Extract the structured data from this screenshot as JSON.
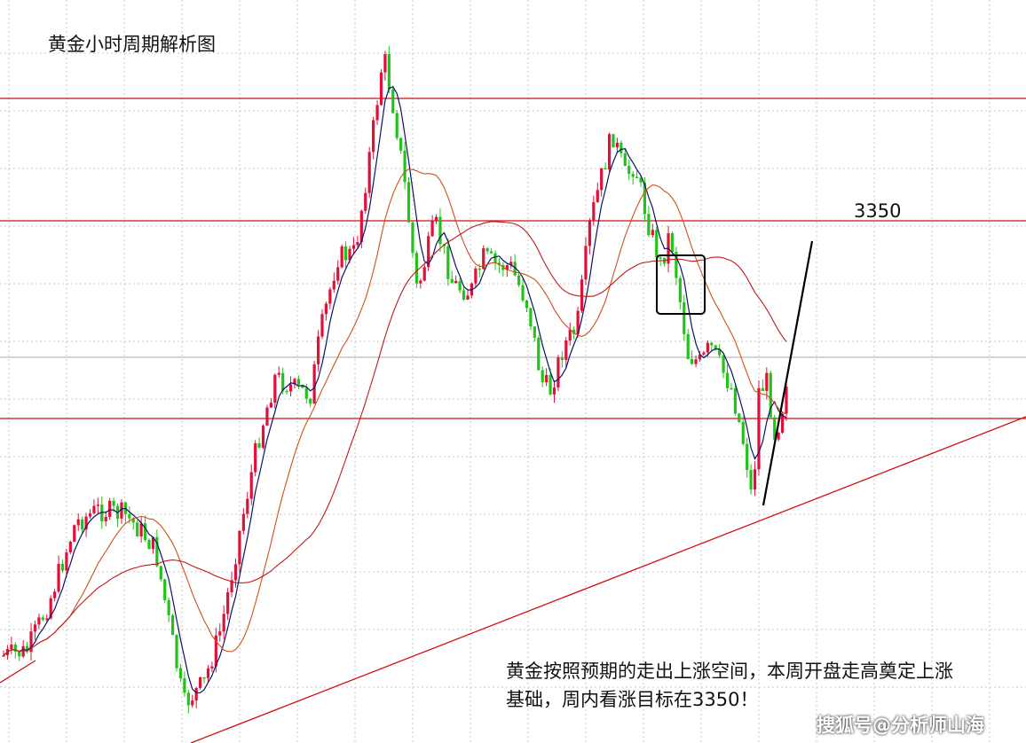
{
  "title": "黄金小时周期解析图",
  "level_label": "3350",
  "caption": {
    "line1": "黄金按照预期的走出上涨空间，本周开盘走高奠定上涨",
    "line2": "基础，周内看涨目标在3350！"
  },
  "watermark": "搜狐号@分析师山海",
  "colors": {
    "up": "#e0103a",
    "down": "#22c21a",
    "ma_short": "#0a1466",
    "ma_long": "#d0501a",
    "ma_longest": "#c01818",
    "level_line": "#d11010",
    "trendline": "#d11010",
    "projection": "#000000",
    "grid": "#c8c8c8"
  },
  "chart_data": {
    "type": "candlestick",
    "title": "黄金小时周期解析图",
    "grid": true,
    "axes_labels_shown": false,
    "price_levels": [
      3350
    ],
    "annotations": [
      {
        "type": "text",
        "text": "3350"
      },
      {
        "type": "rectangle",
        "description": "consolidation box before breakdown"
      },
      {
        "type": "rising_trendline",
        "description": "support trendline from lower-left"
      },
      {
        "type": "projection_line",
        "description": "upward projection toward 3350"
      }
    ],
    "series": [
      {
        "name": "",
        "type": "ohlc"
      },
      {
        "name": "",
        "type": "moving_average"
      },
      {
        "name": "",
        "type": "moving_average"
      },
      {
        "name": "",
        "type": "moving_average"
      }
    ]
  }
}
